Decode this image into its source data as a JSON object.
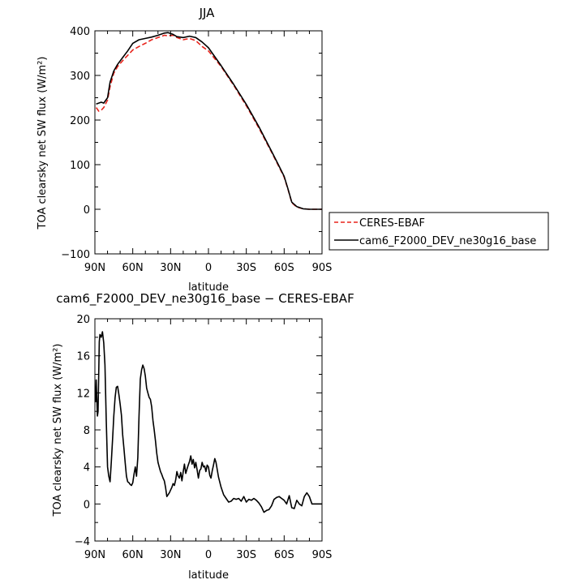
{
  "chart_data": [
    {
      "type": "line",
      "title": "JJA",
      "xlabel": "latitude",
      "ylabel": "TOA clearsky net SW flux (W/m²)",
      "xlim": [
        90,
        -90
      ],
      "ylim": [
        -100,
        400
      ],
      "x_ticks": [
        90,
        60,
        30,
        0,
        -30,
        -60,
        -90
      ],
      "x_tick_labels": [
        "90N",
        "60N",
        "30N",
        "0",
        "30S",
        "60S",
        "90S"
      ],
      "y_ticks": [
        -100,
        0,
        100,
        200,
        300,
        400
      ],
      "y_tick_labels": [
        "−100",
        "0",
        "100",
        "200",
        "300",
        "400"
      ],
      "legend": "right",
      "series": [
        {
          "name": "CERES-EBAF",
          "color": "#e8241c",
          "style": "dashed",
          "x": [
            89,
            87,
            85,
            83,
            80,
            78,
            75,
            72,
            68,
            64,
            60,
            55,
            50,
            45,
            40,
            35,
            32,
            28,
            25,
            20,
            15,
            10,
            5,
            0,
            -10,
            -20,
            -30,
            -40,
            -50,
            -55,
            -60,
            -63,
            -66,
            -70,
            -75,
            -80,
            -85,
            -90
          ],
          "values": [
            228,
            220,
            222,
            228,
            245,
            275,
            305,
            320,
            333,
            345,
            357,
            365,
            372,
            380,
            385,
            390,
            389,
            390,
            385,
            380,
            383,
            378,
            365,
            355,
            320,
            278,
            232,
            182,
            128,
            100,
            72,
            45,
            15,
            5,
            1,
            0,
            0,
            0
          ]
        },
        {
          "name": "cam6_F2000_DEV_ne30g16_base",
          "color": "#000000",
          "style": "solid",
          "x": [
            89,
            87,
            85,
            83,
            80,
            78,
            75,
            72,
            68,
            64,
            60,
            55,
            50,
            45,
            40,
            35,
            32,
            28,
            25,
            20,
            15,
            10,
            5,
            0,
            -10,
            -20,
            -30,
            -40,
            -50,
            -55,
            -60,
            -63,
            -66,
            -70,
            -75,
            -80,
            -85,
            -90
          ],
          "values": [
            236,
            238,
            240,
            238,
            250,
            285,
            310,
            325,
            340,
            355,
            372,
            380,
            383,
            386,
            390,
            395,
            396,
            392,
            387,
            385,
            388,
            385,
            375,
            362,
            322,
            280,
            235,
            185,
            130,
            102,
            74,
            46,
            16,
            6,
            1,
            0,
            0,
            0
          ]
        }
      ]
    },
    {
      "type": "line",
      "title": "cam6_F2000_DEV_ne30g16_base − CERES-EBAF",
      "xlabel": "latitude",
      "ylabel": "TOA clearsky net SW flux (W/m²)",
      "xlim": [
        90,
        -90
      ],
      "ylim": [
        -4,
        20
      ],
      "x_ticks": [
        90,
        60,
        30,
        0,
        -30,
        -60,
        -90
      ],
      "x_tick_labels": [
        "90N",
        "60N",
        "30N",
        "0",
        "30S",
        "60S",
        "90S"
      ],
      "y_ticks": [
        -4,
        0,
        4,
        8,
        12,
        16,
        20
      ],
      "y_tick_labels": [
        "−4",
        "0",
        "4",
        "8",
        "12",
        "16",
        "20"
      ],
      "series": [
        {
          "color": "#000000",
          "style": "solid",
          "x": [
            89.5,
            89,
            88.5,
            88,
            87.5,
            87,
            86.5,
            86,
            85,
            84,
            83,
            82,
            81.5,
            81,
            80,
            79,
            78,
            77,
            76,
            75,
            74,
            73,
            72,
            71,
            70,
            69,
            68,
            67,
            66,
            65,
            64,
            63,
            62,
            61,
            60,
            59,
            58,
            57,
            56,
            55,
            54,
            53,
            52,
            51,
            50,
            49,
            48,
            47,
            46,
            45,
            44,
            43,
            42,
            41,
            40,
            39,
            38,
            37,
            36,
            35,
            34,
            33,
            32,
            31,
            30,
            29,
            28,
            27,
            26,
            25,
            24,
            23,
            22,
            21,
            20,
            19,
            18,
            17,
            16,
            15,
            14,
            13,
            12,
            11,
            10,
            9,
            8,
            7,
            6,
            5,
            4,
            3,
            2,
            1,
            0,
            -1,
            -2,
            -3,
            -4,
            -5,
            -6,
            -8,
            -10,
            -12,
            -14,
            -16,
            -18,
            -20,
            -22,
            -24,
            -26,
            -28,
            -30,
            -32,
            -34,
            -36,
            -38,
            -40,
            -42,
            -44,
            -46,
            -48,
            -50,
            -52,
            -54,
            -56,
            -58,
            -60,
            -62,
            -64,
            -66,
            -68,
            -70,
            -72,
            -74,
            -76,
            -78,
            -80,
            -82,
            -85,
            -90
          ],
          "values": [
            11.0,
            13.4,
            11.5,
            9.5,
            10.0,
            14.0,
            17.5,
            18.3,
            18.0,
            18.6,
            17.4,
            15.0,
            12.0,
            9.0,
            4.0,
            3.0,
            2.4,
            4.5,
            7.0,
            9.5,
            11.5,
            12.6,
            12.7,
            11.8,
            10.8,
            9.6,
            7.5,
            6.0,
            4.5,
            3.0,
            2.4,
            2.3,
            2.1,
            2.0,
            2.3,
            3.2,
            4.0,
            3.0,
            5.0,
            9.5,
            13.5,
            14.5,
            15.0,
            14.6,
            13.8,
            12.5,
            12.0,
            11.5,
            11.3,
            10.5,
            9.0,
            8.0,
            6.8,
            5.5,
            4.5,
            4.0,
            3.5,
            3.2,
            2.8,
            2.5,
            1.8,
            0.8,
            1.0,
            1.2,
            1.5,
            1.8,
            2.2,
            2.0,
            2.6,
            3.5,
            3.0,
            2.8,
            3.4,
            2.5,
            3.5,
            4.3,
            3.3,
            3.8,
            4.2,
            4.6,
            5.2,
            4.3,
            4.8,
            3.9,
            4.5,
            3.7,
            2.8,
            3.6,
            3.8,
            4.5,
            4.0,
            4.1,
            3.5,
            4.2,
            4.0,
            3.1,
            2.8,
            3.6,
            4.2,
            4.9,
            4.5,
            2.9,
            1.8,
            1.0,
            0.6,
            0.2,
            0.3,
            0.6,
            0.5,
            0.6,
            0.3,
            0.8,
            0.2,
            0.5,
            0.4,
            0.6,
            0.4,
            0.1,
            -0.3,
            -0.9,
            -0.7,
            -0.6,
            -0.2,
            0.5,
            0.7,
            0.8,
            0.6,
            0.4,
            0.0,
            0.9,
            -0.4,
            -0.5,
            0.4,
            0.0,
            -0.2,
            0.8,
            1.2,
            0.8,
            0.0,
            0.0,
            0.0
          ]
        }
      ]
    }
  ]
}
